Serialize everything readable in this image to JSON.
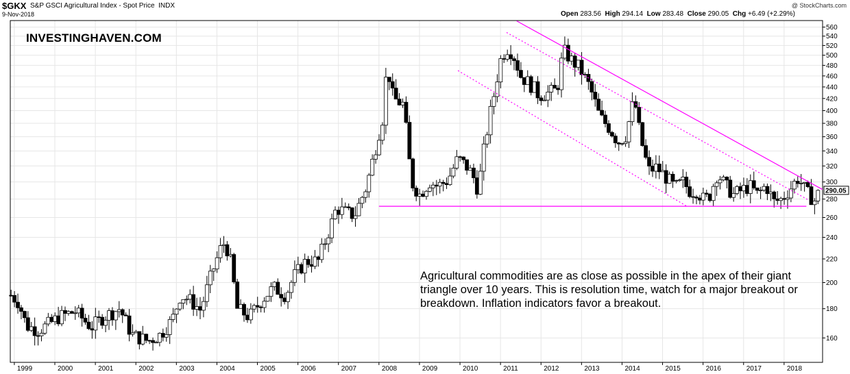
{
  "header": {
    "symbol": "$GKX",
    "name": "S&P GSCI Agricultural Index - Spot Price",
    "exchange": "INDX",
    "date": "9-Nov-2018",
    "credit": "@ StockCharts.com",
    "ohlc": [
      {
        "label": "Open",
        "value": "283.56"
      },
      {
        "label": "High",
        "value": "294.14"
      },
      {
        "label": "Low",
        "value": "283.48"
      },
      {
        "label": "Close",
        "value": "290.05"
      },
      {
        "label": "Chg",
        "value": "+6.49 (+2.29%)"
      }
    ]
  },
  "brand": "INVESTINGHAVEN.COM",
  "annotation": "Agricultural commodities are as close as possible in the apex of their giant triangle over 10 years. This is resolution time, watch for a major breakout or breakdown. Inflation indicators favor a breakout.",
  "colors": {
    "trendline": "#ff00ff",
    "channel": "#ff00ff",
    "candle_up": "#ffffff",
    "candle_down": "#000000",
    "grid": "#e6e6e6"
  },
  "chart_data": {
    "type": "candlestick",
    "period": "monthly",
    "title": "$GKX S&P GSCI Agricultural Index - Spot Price INDX",
    "y_scale": "log",
    "ylim": [
      145,
      575
    ],
    "y_ticks": [
      160,
      180,
      200,
      220,
      240,
      260,
      280,
      300,
      320,
      340,
      360,
      380,
      400,
      420,
      440,
      460,
      480,
      500,
      520,
      540,
      560
    ],
    "x_labels": [
      "1999",
      "2000",
      "2001",
      "2002",
      "2003",
      "2004",
      "2005",
      "2006",
      "2007",
      "2008",
      "2009",
      "2010",
      "2011",
      "2012",
      "2013",
      "2014",
      "2015",
      "2016",
      "2017",
      "2018"
    ],
    "xlim": [
      1998.9,
      2018.95
    ],
    "grid": true,
    "last_value": "290.05",
    "anchors": [
      [
        1998.92,
        190
      ],
      [
        1999.1,
        185
      ],
      [
        1999.3,
        168
      ],
      [
        1999.6,
        165
      ],
      [
        1999.9,
        170
      ],
      [
        2000.1,
        174
      ],
      [
        2000.5,
        178
      ],
      [
        2000.9,
        167
      ],
      [
        2001.2,
        174
      ],
      [
        2001.6,
        180
      ],
      [
        2001.9,
        162
      ],
      [
        2002.3,
        158
      ],
      [
        2002.6,
        162
      ],
      [
        2002.9,
        172
      ],
      [
        2003.1,
        190
      ],
      [
        2003.3,
        187
      ],
      [
        2003.6,
        179
      ],
      [
        2003.9,
        210
      ],
      [
        2004.15,
        235
      ],
      [
        2004.3,
        226
      ],
      [
        2004.5,
        180
      ],
      [
        2004.8,
        174
      ],
      [
        2005.1,
        186
      ],
      [
        2005.4,
        196
      ],
      [
        2005.7,
        190
      ],
      [
        2005.9,
        205
      ],
      [
        2006.2,
        218
      ],
      [
        2006.5,
        218
      ],
      [
        2006.8,
        250
      ],
      [
        2006.95,
        270
      ],
      [
        2007.2,
        265
      ],
      [
        2007.4,
        262
      ],
      [
        2007.7,
        295
      ],
      [
        2007.9,
        340
      ],
      [
        2008.1,
        390
      ],
      [
        2008.2,
        480
      ],
      [
        2008.35,
        420
      ],
      [
        2008.6,
        410
      ],
      [
        2008.8,
        300
      ],
      [
        2009.0,
        285
      ],
      [
        2009.25,
        300
      ],
      [
        2009.45,
        295
      ],
      [
        2009.7,
        302
      ],
      [
        2009.95,
        330
      ],
      [
        2010.15,
        320
      ],
      [
        2010.3,
        310
      ],
      [
        2010.45,
        290
      ],
      [
        2010.6,
        345
      ],
      [
        2010.85,
        430
      ],
      [
        2011.0,
        490
      ],
      [
        2011.15,
        515
      ],
      [
        2011.3,
        505
      ],
      [
        2011.5,
        460
      ],
      [
        2011.8,
        440
      ],
      [
        2011.95,
        425
      ],
      [
        2012.2,
        430
      ],
      [
        2012.4,
        435
      ],
      [
        2012.55,
        510
      ],
      [
        2012.75,
        490
      ],
      [
        2012.95,
        475
      ],
      [
        2013.2,
        440
      ],
      [
        2013.45,
        390
      ],
      [
        2013.7,
        372
      ],
      [
        2013.9,
        352
      ],
      [
        2014.1,
        362
      ],
      [
        2014.3,
        420
      ],
      [
        2014.45,
        360
      ],
      [
        2014.65,
        314
      ],
      [
        2014.85,
        318
      ],
      [
        2015.05,
        308
      ],
      [
        2015.3,
        293
      ],
      [
        2015.5,
        300
      ],
      [
        2015.7,
        288
      ],
      [
        2015.85,
        290
      ],
      [
        2016.0,
        280
      ],
      [
        2016.15,
        282
      ],
      [
        2016.35,
        310
      ],
      [
        2016.55,
        296
      ],
      [
        2016.75,
        285
      ],
      [
        2016.95,
        290
      ],
      [
        2017.15,
        295
      ],
      [
        2017.35,
        285
      ],
      [
        2017.55,
        296
      ],
      [
        2017.75,
        277
      ],
      [
        2017.95,
        280
      ],
      [
        2018.15,
        292
      ],
      [
        2018.35,
        305
      ],
      [
        2018.55,
        288
      ],
      [
        2018.75,
        278
      ],
      [
        2018.86,
        290.05
      ]
    ],
    "trendlines": [
      {
        "kind": "solid",
        "points": [
          [
            2011.4,
            574
          ],
          [
            2018.95,
            291
          ]
        ]
      },
      {
        "kind": "dotted",
        "points": [
          [
            2011.15,
            548
          ],
          [
            2018.6,
            279
          ]
        ]
      },
      {
        "kind": "dotted",
        "points": [
          [
            2009.95,
            470
          ],
          [
            2015.6,
            272
          ]
        ]
      },
      {
        "kind": "solid",
        "points": [
          [
            2008.0,
            272
          ],
          [
            2018.55,
            272
          ]
        ]
      }
    ]
  }
}
